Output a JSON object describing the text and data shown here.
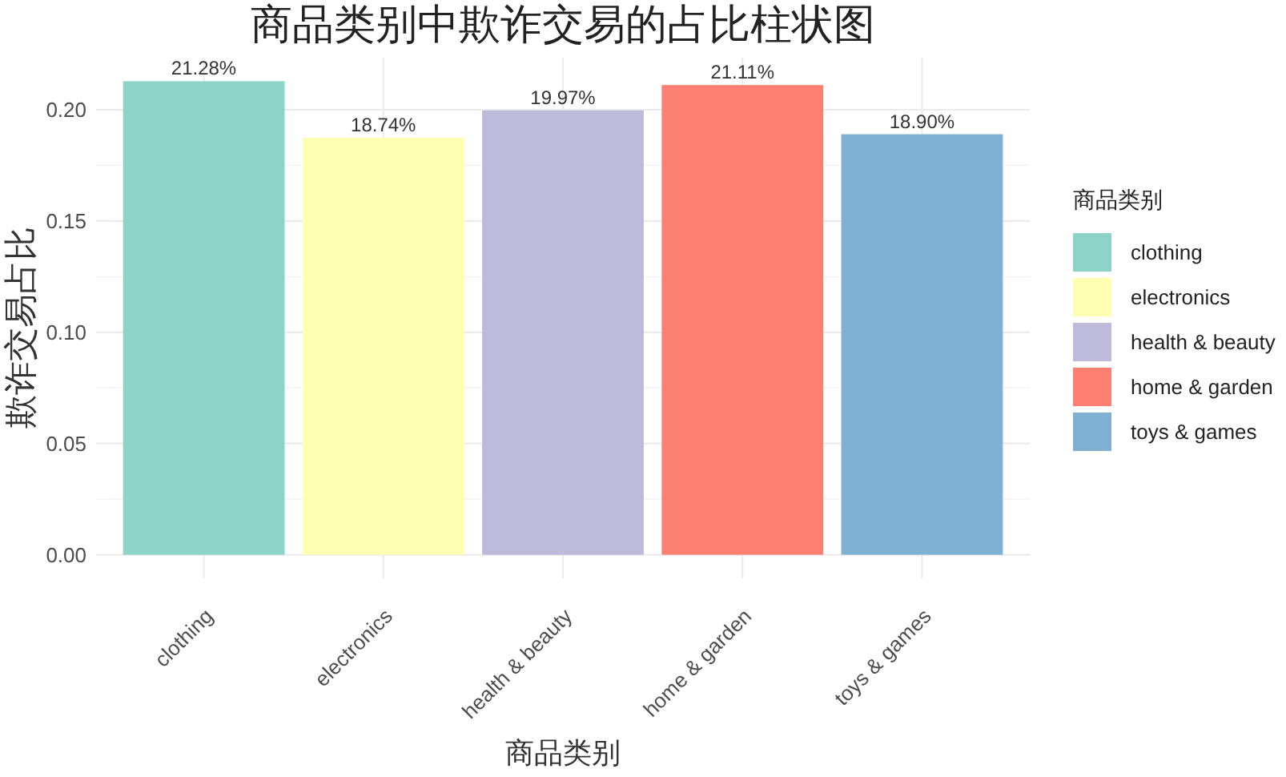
{
  "chart_data": {
    "type": "bar",
    "title": "商品类别中欺诈交易的占比柱状图",
    "xlabel": "商品类别",
    "ylabel": "欺诈交易占比",
    "legend_title": "商品类别",
    "categories": [
      "clothing",
      "electronics",
      "health & beauty",
      "home & garden",
      "toys & games"
    ],
    "stacked": true,
    "series": [
      {
        "name": "clothing",
        "color": "#8dd3c7",
        "values": [
          0.2128,
          null,
          null,
          null,
          null
        ],
        "value_labels": [
          "21.28%",
          null,
          null,
          null,
          null
        ]
      },
      {
        "name": "electronics",
        "color": "#ffffb3",
        "values": [
          null,
          0.1874,
          null,
          null,
          null
        ],
        "value_labels": [
          null,
          "18.74%",
          null,
          null,
          null
        ]
      },
      {
        "name": "health & beauty",
        "color": "#bebada",
        "values": [
          null,
          null,
          0.1997,
          null,
          null
        ],
        "value_labels": [
          null,
          null,
          "19.97%",
          null,
          null
        ]
      },
      {
        "name": "home & garden",
        "color": "#fb8072",
        "values": [
          null,
          null,
          null,
          0.2111,
          null
        ],
        "value_labels": [
          null,
          null,
          null,
          "21.11%",
          null
        ]
      },
      {
        "name": "toys & games",
        "color": "#80b1d3",
        "values": [
          null,
          null,
          null,
          null,
          0.189
        ],
        "value_labels": [
          null,
          null,
          null,
          null,
          "18.90%"
        ]
      }
    ],
    "ylim": [
      -0.0106,
      0.2234
    ],
    "yticks": [
      {
        "value": 0,
        "label": "0.00"
      },
      {
        "value": 0.05,
        "label": "0.05"
      },
      {
        "value": 0.1,
        "label": "0.10"
      },
      {
        "value": 0.15,
        "label": "0.15"
      },
      {
        "value": 0.2,
        "label": "0.20"
      }
    ],
    "grid": true,
    "legend": "right"
  }
}
